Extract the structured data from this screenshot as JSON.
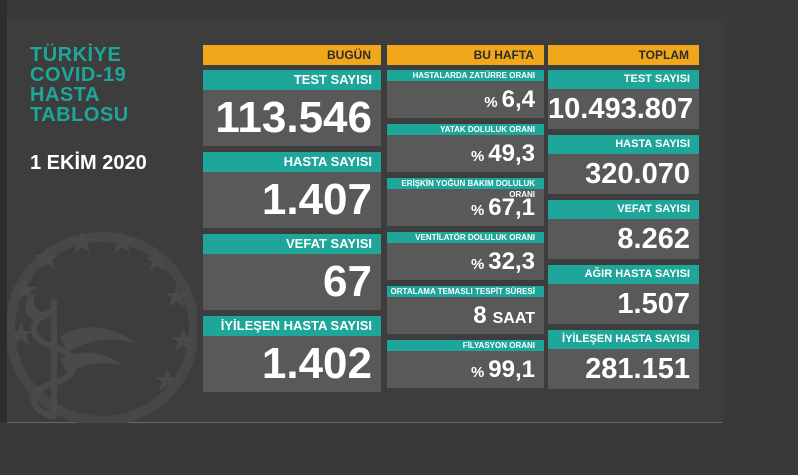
{
  "title": {
    "line1": "TÜRKİYE",
    "line2": "COVID-19",
    "line3": "HASTA",
    "line4": "TABLOSU"
  },
  "date": "1 EKİM 2020",
  "colors": {
    "header": "#f0a71c",
    "label": "#1ea69a",
    "card": "#595959",
    "background": "#3d3d3d"
  },
  "today": {
    "header": "BUGÜN",
    "items": [
      {
        "label": "TEST SAYISI",
        "value": "113.546"
      },
      {
        "label": "HASTA SAYISI",
        "value": "1.407"
      },
      {
        "label": "VEFAT SAYISI",
        "value": "67"
      },
      {
        "label": "İYİLEŞEN HASTA SAYISI",
        "value": "1.402"
      }
    ]
  },
  "week": {
    "header": "BU HAFTA",
    "items": [
      {
        "label": "HASTALARDA ZATÜRRE ORANI",
        "prefix": "%",
        "value": "6,4",
        "unit": ""
      },
      {
        "label": "YATAK DOLULUK ORANI",
        "prefix": "%",
        "value": "49,3",
        "unit": ""
      },
      {
        "label": "ERİŞKİN YOĞUN BAKIM DOLULUK ORANI",
        "prefix": "%",
        "value": "67,1",
        "unit": ""
      },
      {
        "label": "VENTİLATÖR DOLULUK ORANI",
        "prefix": "%",
        "value": "32,3",
        "unit": ""
      },
      {
        "label": "ORTALAMA TEMASLI TESPİT SÜRESİ",
        "prefix": "",
        "value": "8",
        "unit": "SAAT"
      },
      {
        "label": "FİLYASYON ORANI",
        "prefix": "%",
        "value": "99,1",
        "unit": ""
      }
    ]
  },
  "total": {
    "header": "TOPLAM",
    "items": [
      {
        "label": "TEST SAYISI",
        "value": "10.493.807"
      },
      {
        "label": "HASTA SAYISI",
        "value": "320.070"
      },
      {
        "label": "VEFAT SAYISI",
        "value": "8.262"
      },
      {
        "label": "AĞIR HASTA SAYISI",
        "value": "1.507"
      },
      {
        "label": "İYİLEŞEN HASTA SAYISI",
        "value": "281.151"
      }
    ]
  }
}
